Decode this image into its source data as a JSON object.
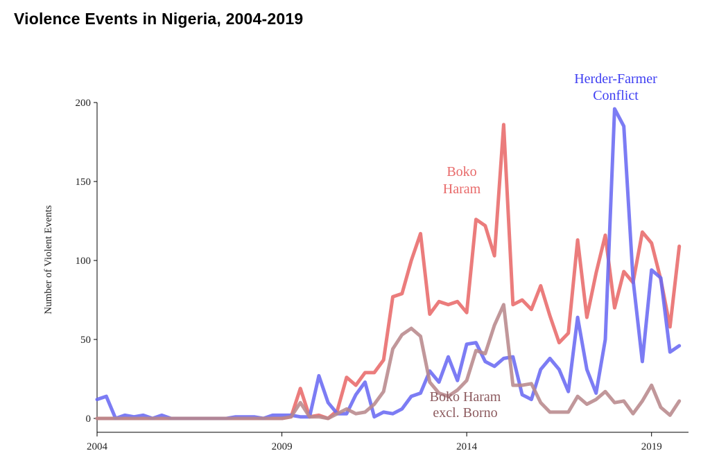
{
  "chart_data": {
    "type": "line",
    "title": "Violence Events in Nigeria, 2004-2019",
    "xlabel": "",
    "ylabel": "Number of Violent Events",
    "xlim": [
      2004,
      2020
    ],
    "ylim": [
      0,
      200
    ],
    "x_ticks": [
      2004,
      2009,
      2014,
      2019
    ],
    "y_ticks": [
      0,
      50,
      100,
      150,
      200
    ],
    "x_step": 0.25,
    "x_start": 2004,
    "series": [
      {
        "name": "Boko Haram",
        "label_lines": [
          "Boko",
          "Haram"
        ],
        "color": "#E86A6A",
        "values": [
          0,
          0,
          0,
          0,
          0,
          0,
          0,
          0,
          0,
          0,
          0,
          0,
          0,
          0,
          0,
          0,
          0,
          0,
          0,
          0,
          0,
          1,
          19,
          1,
          2,
          0,
          5,
          26,
          21,
          29,
          29,
          37,
          77,
          79,
          100,
          117,
          66,
          74,
          72,
          74,
          67,
          126,
          122,
          103,
          186,
          72,
          75,
          69,
          84,
          65,
          48,
          54,
          113,
          64,
          92,
          116,
          70,
          93,
          86,
          118,
          111,
          88,
          58,
          109
        ]
      },
      {
        "name": "Herder-Farmer Conflict",
        "label_lines": [
          "Herder-Farmer",
          "Conflict"
        ],
        "color": "#6A6AF2",
        "values": [
          12,
          14,
          0,
          2,
          1,
          2,
          0,
          2,
          0,
          0,
          0,
          0,
          0,
          0,
          0,
          1,
          1,
          1,
          0,
          2,
          2,
          2,
          1,
          1,
          27,
          10,
          3,
          3,
          15,
          23,
          1,
          4,
          3,
          6,
          14,
          16,
          30,
          23,
          39,
          24,
          47,
          48,
          36,
          33,
          38,
          39,
          15,
          12,
          31,
          38,
          31,
          17,
          64,
          31,
          16,
          50,
          196,
          185,
          88,
          36,
          94,
          89,
          42,
          46
        ]
      },
      {
        "name": "Boko Haram excl. Borno",
        "label_lines": [
          "Boko Haram",
          "excl. Borno"
        ],
        "color": "#B8898C",
        "values": [
          0,
          0,
          0,
          0,
          0,
          0,
          0,
          0,
          0,
          0,
          0,
          0,
          0,
          0,
          0,
          0,
          0,
          0,
          0,
          0,
          0,
          1,
          10,
          1,
          1,
          0,
          3,
          6,
          3,
          4,
          9,
          17,
          44,
          53,
          57,
          52,
          23,
          16,
          14,
          18,
          24,
          43,
          41,
          59,
          72,
          21,
          21,
          22,
          10,
          4,
          4,
          4,
          14,
          9,
          12,
          17,
          10,
          11,
          3,
          11,
          21,
          7,
          2,
          11
        ]
      }
    ]
  }
}
